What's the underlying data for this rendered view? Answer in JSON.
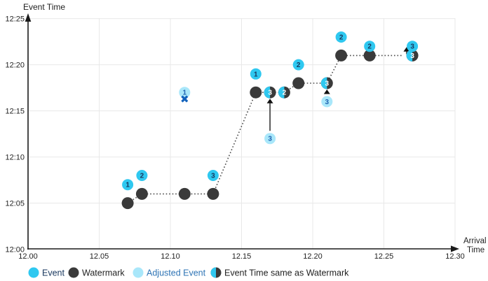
{
  "colors": {
    "event": "#2fc8f0",
    "adjusted_event": "#a9e7fa",
    "watermark": "#3a3a3a",
    "event_number": "#17365d",
    "adjusted_number": "#1f63b0",
    "half_number": "#ffffff",
    "dropped_x": "#1262bc",
    "grid": "#e8e8e8",
    "axis": "#1a1a1a",
    "dotted_line": "#4a4a4a",
    "arrow_line": "#595959",
    "arrow_head": "#111111"
  },
  "chart_data": {
    "type": "scatter",
    "title": "",
    "x_axis": {
      "label": "Arrival Time",
      "label_lines": [
        "Arrival",
        "Time"
      ],
      "range": [
        12.0,
        12.3
      ],
      "grid": true,
      "ticks": [
        {
          "v": 12.0,
          "label": "12.00"
        },
        {
          "v": 12.05,
          "label": "12.05"
        },
        {
          "v": 12.1,
          "label": "12.10"
        },
        {
          "v": 12.15,
          "label": "12.15"
        },
        {
          "v": 12.2,
          "label": "12.20"
        },
        {
          "v": 12.25,
          "label": "12.25"
        },
        {
          "v": 12.3,
          "label": "12.30"
        }
      ]
    },
    "y_axis": {
      "label": "Event Time",
      "range_minutes_after_1200": [
        0,
        25
      ],
      "grid": true,
      "ticks": [
        {
          "v": 0,
          "label": "12:00"
        },
        {
          "v": 5,
          "label": "12:05"
        },
        {
          "v": 10,
          "label": "12:10"
        },
        {
          "v": 15,
          "label": "12:15"
        },
        {
          "v": 20,
          "label": "12:20"
        },
        {
          "v": 25,
          "label": "12:25"
        }
      ]
    },
    "series": [
      {
        "name": "Event",
        "marker": "event",
        "points": [
          {
            "label": "1",
            "x": 12.07,
            "y": 7,
            "event_time": "12:07"
          },
          {
            "label": "2",
            "x": 12.08,
            "y": 8,
            "event_time": "12:08"
          },
          {
            "label": "3",
            "x": 12.13,
            "y": 8,
            "event_time": "12:08"
          },
          {
            "label": "1",
            "x": 12.16,
            "y": 19,
            "event_time": "12:19"
          },
          {
            "label": "2",
            "x": 12.19,
            "y": 20,
            "event_time": "12:20"
          },
          {
            "label": "2",
            "x": 12.22,
            "y": 23,
            "event_time": "12:23"
          },
          {
            "label": "2",
            "x": 12.24,
            "y": 22,
            "event_time": "12:22"
          },
          {
            "label": "3",
            "x": 12.27,
            "y": 22,
            "event_time": "12:22"
          }
        ]
      },
      {
        "name": "Watermark",
        "marker": "watermark",
        "points": [
          {
            "x": 12.07,
            "y": 5,
            "event_time": "12:05"
          },
          {
            "x": 12.08,
            "y": 6,
            "event_time": "12:06"
          },
          {
            "x": 12.11,
            "y": 6,
            "event_time": "12:06"
          },
          {
            "x": 12.13,
            "y": 6,
            "event_time": "12:06"
          },
          {
            "x": 12.16,
            "y": 17,
            "event_time": "12:17"
          },
          {
            "x": 12.19,
            "y": 18,
            "event_time": "12:18"
          },
          {
            "x": 12.22,
            "y": 21,
            "event_time": "12:21"
          },
          {
            "x": 12.24,
            "y": 21,
            "event_time": "12:21"
          }
        ]
      },
      {
        "name": "Adjusted Event",
        "marker": "adjusted",
        "points": [
          {
            "label": "1",
            "x": 12.11,
            "y": 17,
            "event_time": "12:17",
            "dropped": true
          },
          {
            "label": "3",
            "x": 12.17,
            "y": 12,
            "event_time": "12:12"
          },
          {
            "label": "3",
            "x": 12.21,
            "y": 16,
            "event_time": "12:16"
          }
        ]
      },
      {
        "name": "Event Time same as Watermark",
        "marker": "half",
        "points": [
          {
            "label": "3",
            "x": 12.17,
            "y": 17,
            "event_time": "12:17"
          },
          {
            "label": "2",
            "x": 12.18,
            "y": 17,
            "event_time": "12:17"
          },
          {
            "label": "3",
            "x": 12.21,
            "y": 18,
            "event_time": "12:18"
          },
          {
            "label": "3",
            "x": 12.27,
            "y": 21,
            "event_time": "12:21"
          }
        ]
      }
    ],
    "watermark_line": [
      [
        12.07,
        5
      ],
      [
        12.08,
        6
      ],
      [
        12.11,
        6
      ],
      [
        12.13,
        6
      ],
      [
        12.16,
        17
      ],
      [
        12.17,
        17
      ],
      [
        12.18,
        17
      ],
      [
        12.19,
        18
      ],
      [
        12.21,
        18
      ],
      [
        12.22,
        21
      ],
      [
        12.24,
        21
      ],
      [
        12.263,
        21
      ]
    ],
    "adjustment_arrows": [
      {
        "x": 12.17,
        "from": 12,
        "to": 17,
        "from_pad": 11,
        "to_pad": 9
      },
      {
        "x": 12.21,
        "from": 16,
        "to": 18,
        "from_pad": 11,
        "to_pad": 9
      },
      {
        "x": 12.266,
        "from": 21,
        "to": 22,
        "from_pad": 2,
        "to_pad": 1
      }
    ],
    "legend_position": "bottom-left"
  },
  "legend": [
    {
      "label": "Event",
      "swatch": "event",
      "text_color": "#17365d"
    },
    {
      "label": "Watermark",
      "swatch": "watermark",
      "text_color": "#1f1f1f"
    },
    {
      "label": "Adjusted Event",
      "swatch": "adjusted",
      "text_color": "#2e74b5"
    },
    {
      "label": "Event Time same as Watermark",
      "swatch": "half",
      "text_color": "#1f1f1f"
    }
  ]
}
